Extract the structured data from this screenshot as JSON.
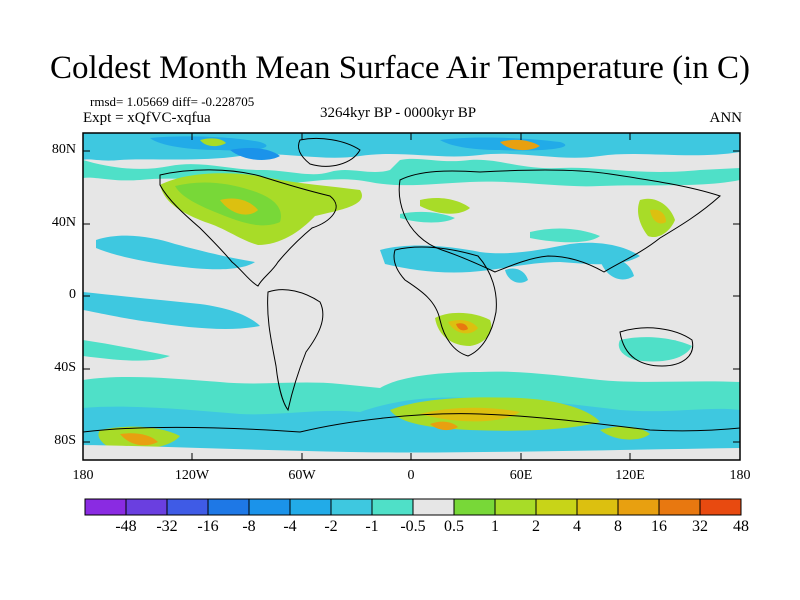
{
  "title": "Coldest Month Mean Surface Air Temperature (in C)",
  "stats": "rmsd= 1.05669 diff= -0.228705",
  "experiment": "Expt = xQfVC-xqfua",
  "period": "3264kyr BP - 0000kyr BP",
  "season": "ANN",
  "y_ticks": [
    "80N",
    "40N",
    "0",
    "40S",
    "80S"
  ],
  "x_ticks": [
    "180",
    "120W",
    "60W",
    "0",
    "60E",
    "120E",
    "180"
  ],
  "colorbar": {
    "labels": [
      "-48",
      "-32",
      "-16",
      "-8",
      "-4",
      "-2",
      "-1",
      "-0.5",
      "0.5",
      "1",
      "2",
      "4",
      "8",
      "16",
      "32",
      "48"
    ],
    "colors": [
      "#8a2be2",
      "#6a3fe0",
      "#3f5be6",
      "#1e78e6",
      "#1b93ea",
      "#22abe8",
      "#3ec8e0",
      "#4fe0c8",
      "#e6e6e6",
      "#78d838",
      "#a8dc28",
      "#c8d418",
      "#dcc010",
      "#e8a010",
      "#e87810",
      "#e84a10"
    ]
  },
  "colors": {
    "neutral": "#e6e6e6",
    "cool1": "#3ec8e0",
    "cool2": "#4fe0c8",
    "cool3": "#22abe8",
    "cool4": "#1b93ea",
    "warm1": "#78d838",
    "warm2": "#a8dc28",
    "warm3": "#dcc010",
    "warm4": "#e8a010",
    "warm5": "#e87810"
  }
}
